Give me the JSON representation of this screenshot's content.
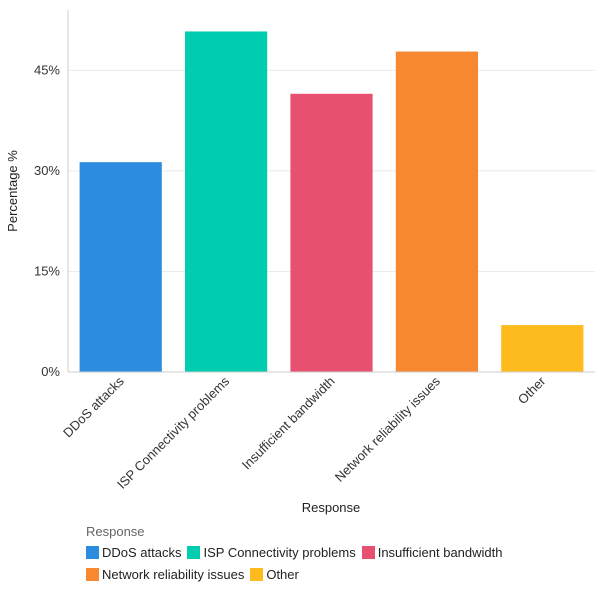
{
  "chart_data": {
    "type": "bar",
    "title": "",
    "xlabel": "Response",
    "ylabel": "Percentage %",
    "ylim": [
      0,
      54
    ],
    "yticks": [
      0,
      15,
      30,
      45
    ],
    "ytick_labels": [
      "0%",
      "15%",
      "30%",
      "45%"
    ],
    "categories": [
      "DDoS attacks",
      "ISP Connectivity problems",
      "Insufficient bandwidth",
      "Network reliability issues",
      "Other"
    ],
    "values": [
      31.3,
      50.8,
      41.5,
      47.8,
      7.0
    ],
    "colors": [
      "#2B8CE0",
      "#00CDB0",
      "#E8506F",
      "#F7882F",
      "#FDBB1E"
    ],
    "legend": {
      "title": "Response",
      "items": [
        "DDoS attacks",
        "ISP Connectivity problems",
        "Insufficient bandwidth",
        "Network reliability issues",
        "Other"
      ]
    },
    "grid": true
  }
}
